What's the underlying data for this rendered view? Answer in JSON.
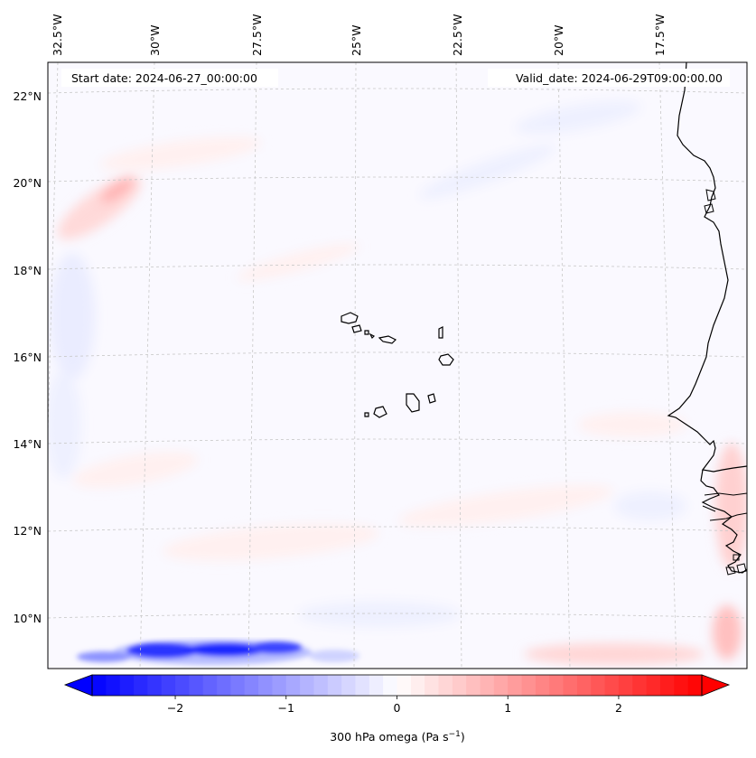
{
  "map": {
    "start_date_label": "Start date: 2024-06-27_00:00:00",
    "valid_date_label": "Valid_date: 2024-06-29T09:00:00.00",
    "lon_labels": [
      "32.5°W",
      "30°W",
      "27.5°W",
      "25°W",
      "22.5°W",
      "20°W",
      "17.5°W"
    ],
    "lat_labels": [
      "22°N",
      "20°N",
      "18°N",
      "16°N",
      "14°N",
      "12°N",
      "10°N"
    ]
  },
  "colorbar": {
    "label_prefix": "300 hPa omega (Pa s",
    "label_exp": "−1",
    "label_suffix": ")",
    "ticks": [
      "−2",
      "−1",
      "0",
      "1",
      "2"
    ],
    "min": -2.75,
    "max": 2.75,
    "tick_values": [
      -2,
      -1,
      0,
      1,
      2
    ],
    "cmap": "bwr"
  },
  "colors": {
    "coast": "#000000",
    "grid": "#c8c8c8",
    "min_color": "#0000ff",
    "mid_color": "#ffffff",
    "max_color": "#ff0000"
  }
}
